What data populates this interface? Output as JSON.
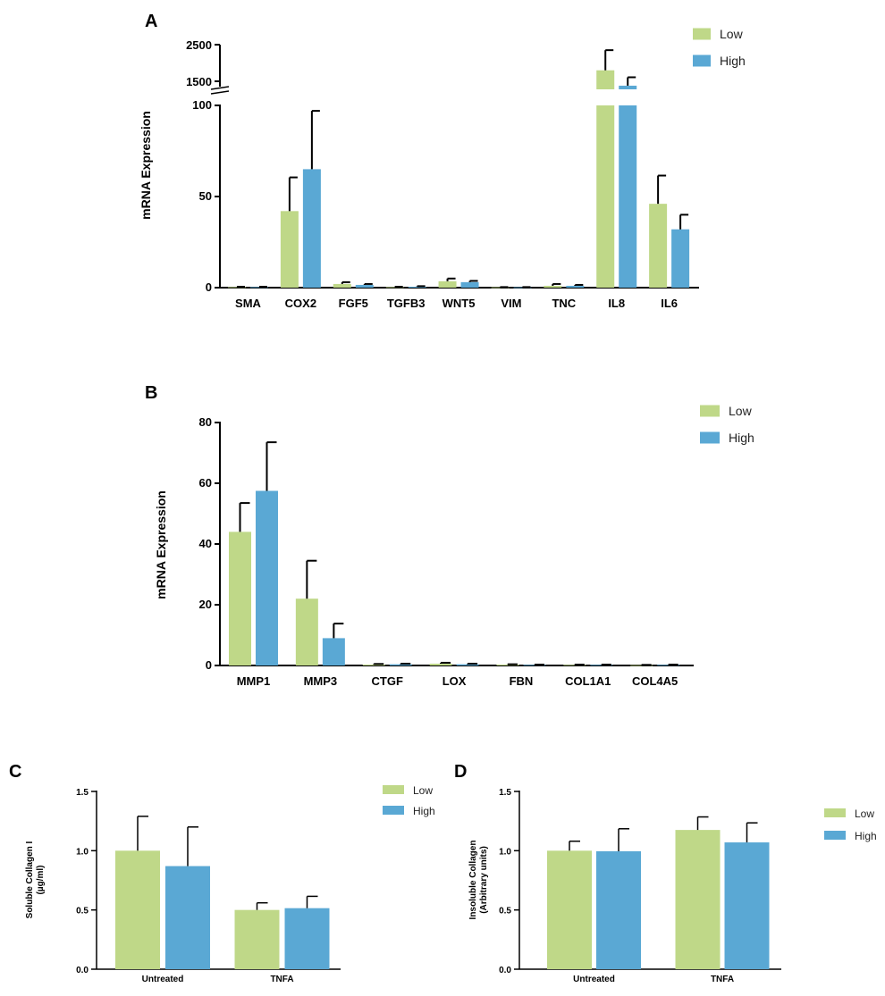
{
  "colors": {
    "low": "#bfd888",
    "high": "#5aa8d4",
    "axis": "#000000"
  },
  "chart_data": [
    {
      "panel": "A",
      "type": "bar",
      "ylabel": "mRNA Expression",
      "categories": [
        "SMA",
        "COX2",
        "FGF5",
        "TGFB3",
        "WNT5",
        "VIM",
        "TNC",
        "IL8",
        "IL6"
      ],
      "series": [
        {
          "name": "Low",
          "values": [
            0.3,
            42,
            2,
            0.3,
            3.5,
            0.2,
            1,
            1800,
            46
          ],
          "errors": [
            0.2,
            18.5,
            1,
            0.2,
            1.5,
            0.1,
            1,
            550,
            15.5
          ]
        },
        {
          "name": "High",
          "values": [
            0.3,
            65,
            1.5,
            0.5,
            3,
            0.2,
            1,
            1380,
            32
          ],
          "errors": [
            0.2,
            32,
            0.5,
            0.3,
            0.7,
            0.1,
            0.5,
            230,
            8
          ]
        }
      ],
      "axis_break": true,
      "lower_ylim": [
        0,
        100
      ],
      "lower_ticks": [
        "0",
        "50",
        "100"
      ],
      "upper_ylim": [
        1500,
        2500
      ],
      "upper_ticks": [
        "1500",
        "2500"
      ],
      "legend": "top-right"
    },
    {
      "panel": "B",
      "type": "bar",
      "ylabel": "mRNA Expression",
      "categories": [
        "MMP1",
        "MMP3",
        "CTGF",
        "LOX",
        "FBN",
        "COL1A1",
        "COL4A5"
      ],
      "series": [
        {
          "name": "Low",
          "values": [
            44,
            22,
            0.3,
            0.6,
            0.3,
            0.2,
            0.1
          ],
          "errors": [
            9.5,
            12.5,
            0.2,
            0.3,
            0.1,
            0.1,
            0.1
          ]
        },
        {
          "name": "High",
          "values": [
            57.5,
            9,
            0.4,
            0.4,
            0.2,
            0.2,
            0.2
          ],
          "errors": [
            16,
            4.8,
            0.2,
            0.2,
            0.1,
            0.1,
            0.1
          ]
        }
      ],
      "ylim": [
        0,
        80
      ],
      "yticks": [
        "0",
        "20",
        "40",
        "60",
        "80"
      ],
      "legend": "top-right"
    },
    {
      "panel": "C",
      "type": "bar",
      "ylabel_lines": [
        "Soluble Collagen I",
        "(µg/ml)"
      ],
      "categories": [
        "Untreated",
        "TNFA"
      ],
      "series": [
        {
          "name": "Low",
          "values": [
            1.0,
            0.5
          ],
          "errors": [
            0.29,
            0.06
          ]
        },
        {
          "name": "High",
          "values": [
            0.87,
            0.515
          ],
          "errors": [
            0.33,
            0.1
          ]
        }
      ],
      "ylim": [
        0,
        1.5
      ],
      "yticks": [
        "0.0",
        "0.5",
        "1.0",
        "1.5"
      ],
      "legend": "right"
    },
    {
      "panel": "D",
      "type": "bar",
      "ylabel_lines": [
        "Insoluble Collagen",
        "(Arbitrary units)"
      ],
      "categories": [
        "Untreated",
        "TNFA"
      ],
      "series": [
        {
          "name": "Low",
          "values": [
            1.0,
            1.175
          ],
          "errors": [
            0.08,
            0.11
          ]
        },
        {
          "name": "High",
          "values": [
            0.995,
            1.07
          ],
          "errors": [
            0.19,
            0.165
          ]
        }
      ],
      "ylim": [
        0,
        1.5
      ],
      "yticks": [
        "0.0",
        "0.5",
        "1.0",
        "1.5"
      ],
      "legend": "right"
    }
  ]
}
